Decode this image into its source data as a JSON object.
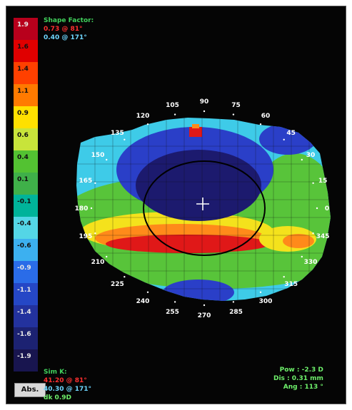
{
  "scale": {
    "labels": [
      "1.9",
      "1.6",
      "1.4",
      "1.1",
      "0.9",
      "0.6",
      "0.4",
      "0.1",
      "-0.1",
      "-0.4",
      "-0.6",
      "-0.9",
      "-1.1",
      "-1.4",
      "-1.6",
      "-1.9"
    ],
    "colors": [
      "#b8001c",
      "#e00000",
      "#ff4000",
      "#ff7a00",
      "#ffe000",
      "#c8e43a",
      "#53c232",
      "#3fb049",
      "#00b39a",
      "#54d6e6",
      "#3cb0f0",
      "#2a6ce8",
      "#2547c6",
      "#23329e",
      "#1c2272",
      "#18154f"
    ],
    "abs_button": "Abs."
  },
  "top_info": {
    "title": "Shape Factor:",
    "line1": "0.73 @ 81°",
    "line2": "0.40 @ 171°"
  },
  "bottom_left_info": {
    "title": "Sim K:",
    "line1": "41.20 @ 81°",
    "line2": "40.30 @ 171°",
    "line3": "dk 0.9D"
  },
  "bottom_right_info": {
    "pow": "Pow : -2.3 D",
    "dis": "Dis : 0.31 mm",
    "ang": "Ang : 113 °"
  },
  "angles": [
    "105",
    "90",
    "75",
    "120",
    "60",
    "135",
    "45",
    "150",
    "30",
    "165",
    "15",
    "180",
    "0",
    "195",
    "345",
    "210",
    "330",
    "225",
    "315",
    "240",
    "300",
    "255",
    "285",
    "270"
  ],
  "map": {
    "colors": {
      "deep_blue": "#1c1a6e",
      "blue": "#2a3fc8",
      "cyan": "#3ecbe8",
      "green": "#58c43a",
      "yellow": "#f4e21c",
      "orange": "#ff8a1a",
      "red": "#e01818",
      "circle": "#000000",
      "cross": "#ffffff"
    }
  }
}
